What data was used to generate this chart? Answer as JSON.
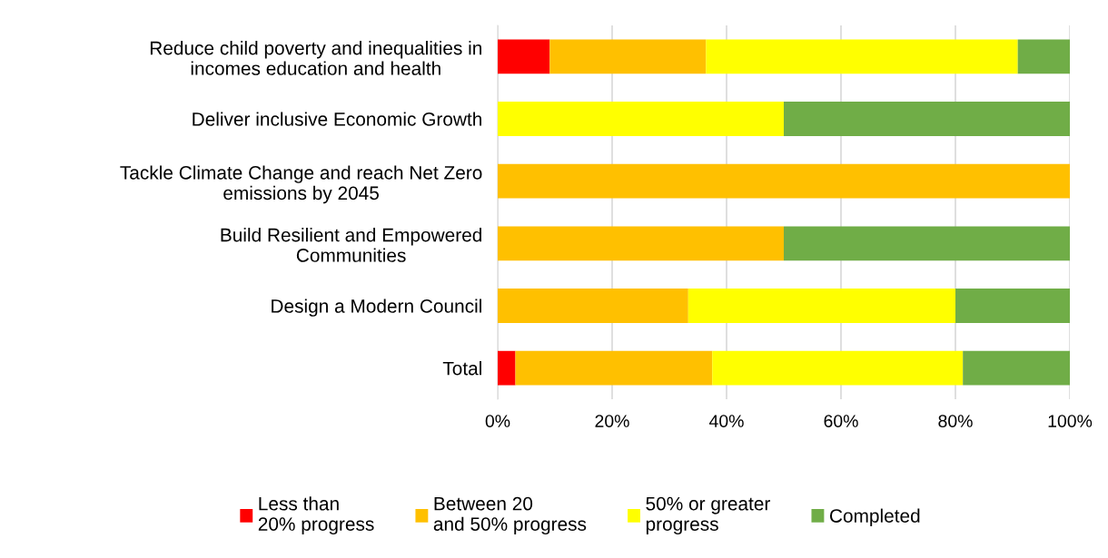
{
  "chart_data": {
    "type": "bar",
    "orientation": "horizontal",
    "stacked": true,
    "categories": [
      "Reduce child poverty and inequalities in\nincomes education and health",
      "Deliver inclusive Economic Growth",
      "Tackle Climate Change and reach Net Zero\nemissions by 2045",
      "Build Resilient and Empowered\nCommunities",
      "Design a Modern Council",
      "Total"
    ],
    "series": [
      {
        "name": "Less than\n20% progress",
        "color": "#ff0000",
        "values": [
          9.1,
          0,
          0,
          0,
          0,
          3.1
        ]
      },
      {
        "name": "Between 20\nand 50% progress",
        "color": "#ffc000",
        "values": [
          27.3,
          0,
          100,
          50,
          33.3,
          34.4
        ]
      },
      {
        "name": "50% or greater\nprogress",
        "color": "#ffff00",
        "values": [
          54.5,
          50,
          0,
          0,
          46.7,
          43.8
        ]
      },
      {
        "name": "Completed",
        "color": "#70ad47",
        "values": [
          9.1,
          50,
          0,
          50,
          20,
          18.7
        ]
      }
    ],
    "xlim": [
      0,
      100
    ],
    "xticks": [
      {
        "value": 0,
        "label": "0%"
      },
      {
        "value": 20,
        "label": "20%"
      },
      {
        "value": 40,
        "label": "40%"
      },
      {
        "value": 60,
        "label": "60%"
      },
      {
        "value": 80,
        "label": "80%"
      },
      {
        "value": 100,
        "label": "100%"
      }
    ],
    "grid": "x",
    "legend": "bottom"
  }
}
